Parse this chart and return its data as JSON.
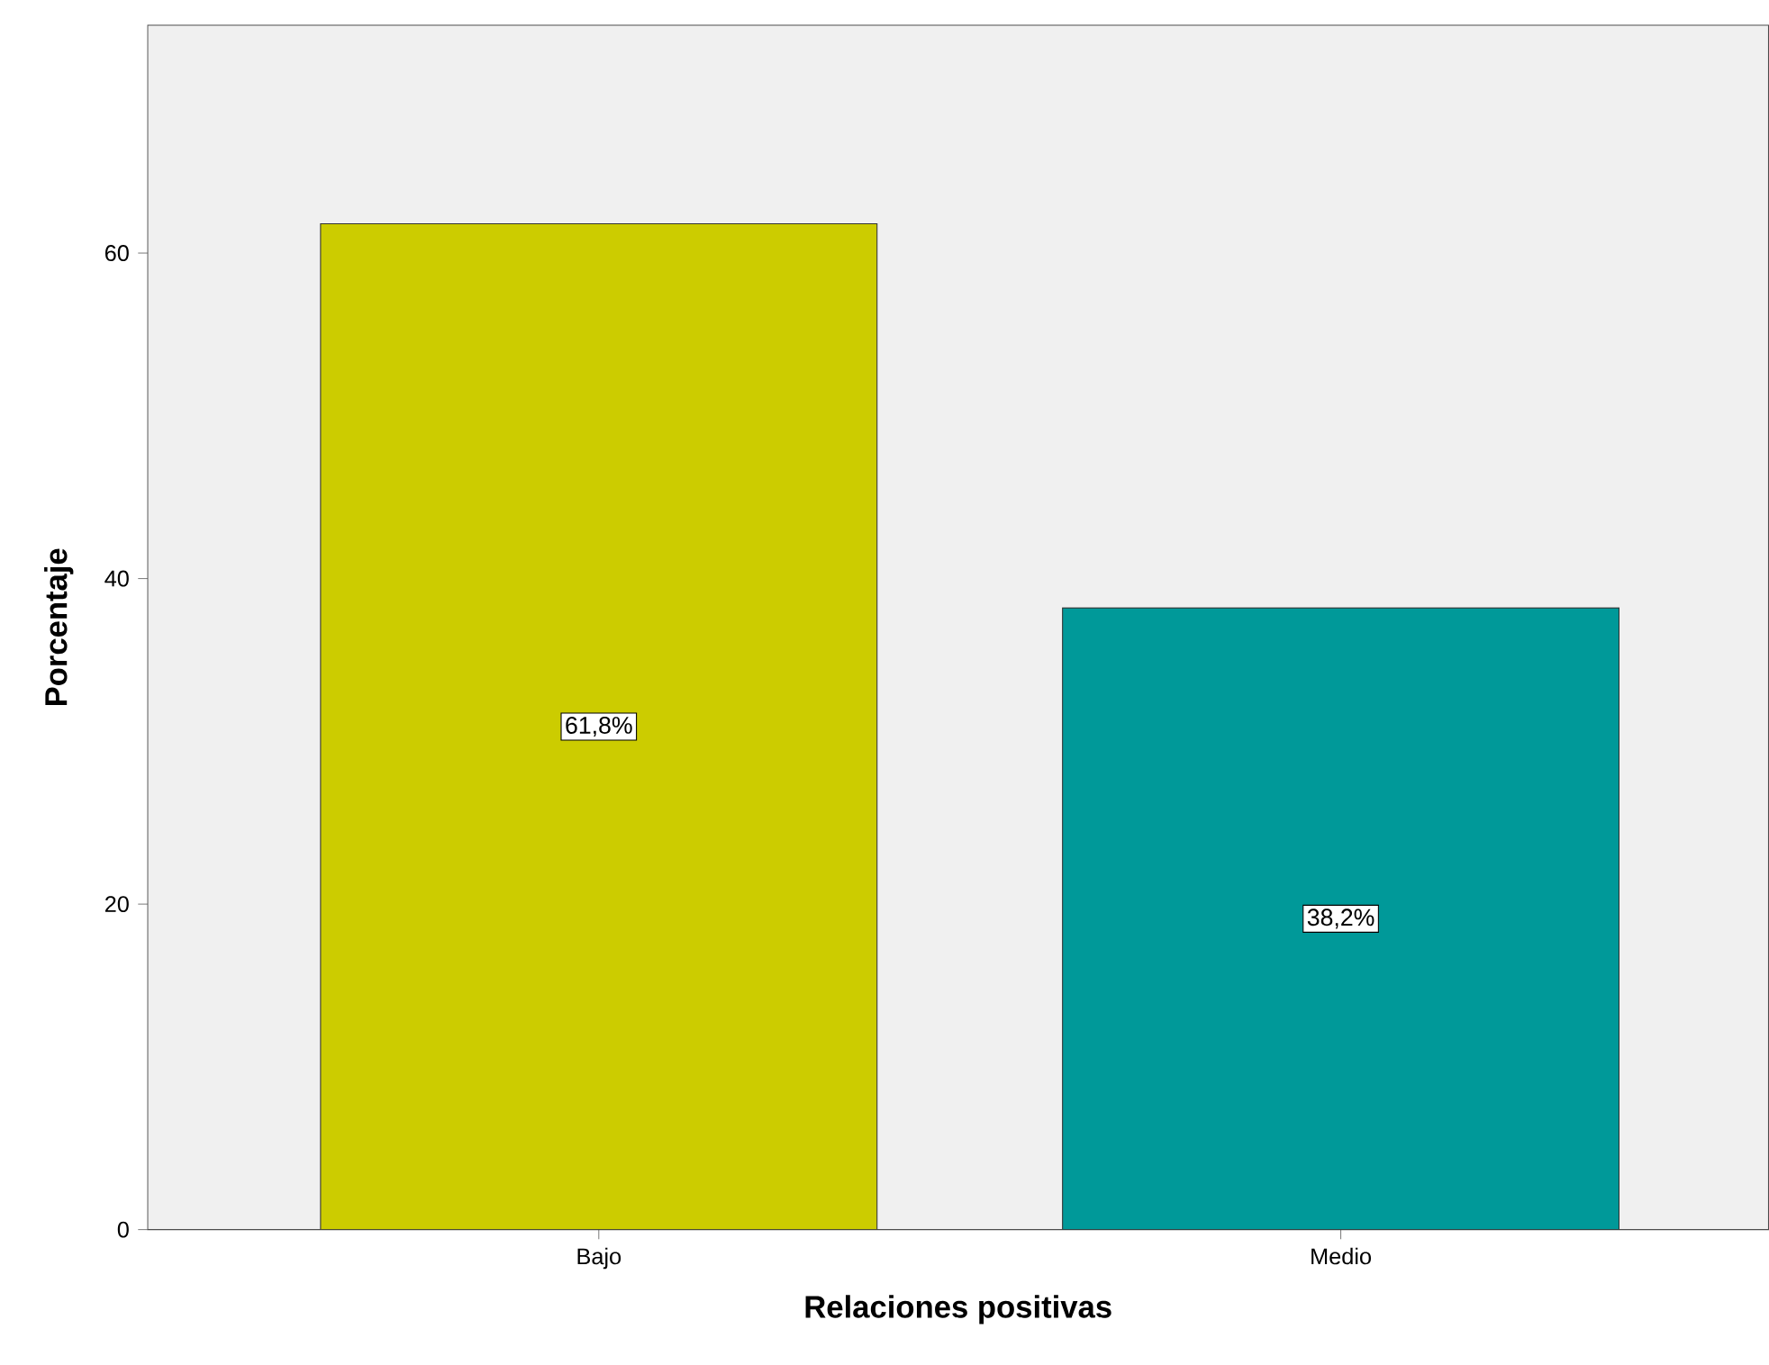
{
  "chart_data": {
    "type": "bar",
    "xlabel": "Relaciones positivas",
    "ylabel": "Porcentaje",
    "categories": [
      "Bajo",
      "Medio"
    ],
    "values": [
      61.8,
      38.2
    ],
    "colors": [
      "#cccc00",
      "#009999"
    ],
    "value_labels": [
      "61,8%",
      "38,2%"
    ],
    "ylim": [
      0,
      74
    ],
    "yticks": [
      0,
      20,
      40,
      60
    ],
    "grid": false
  }
}
